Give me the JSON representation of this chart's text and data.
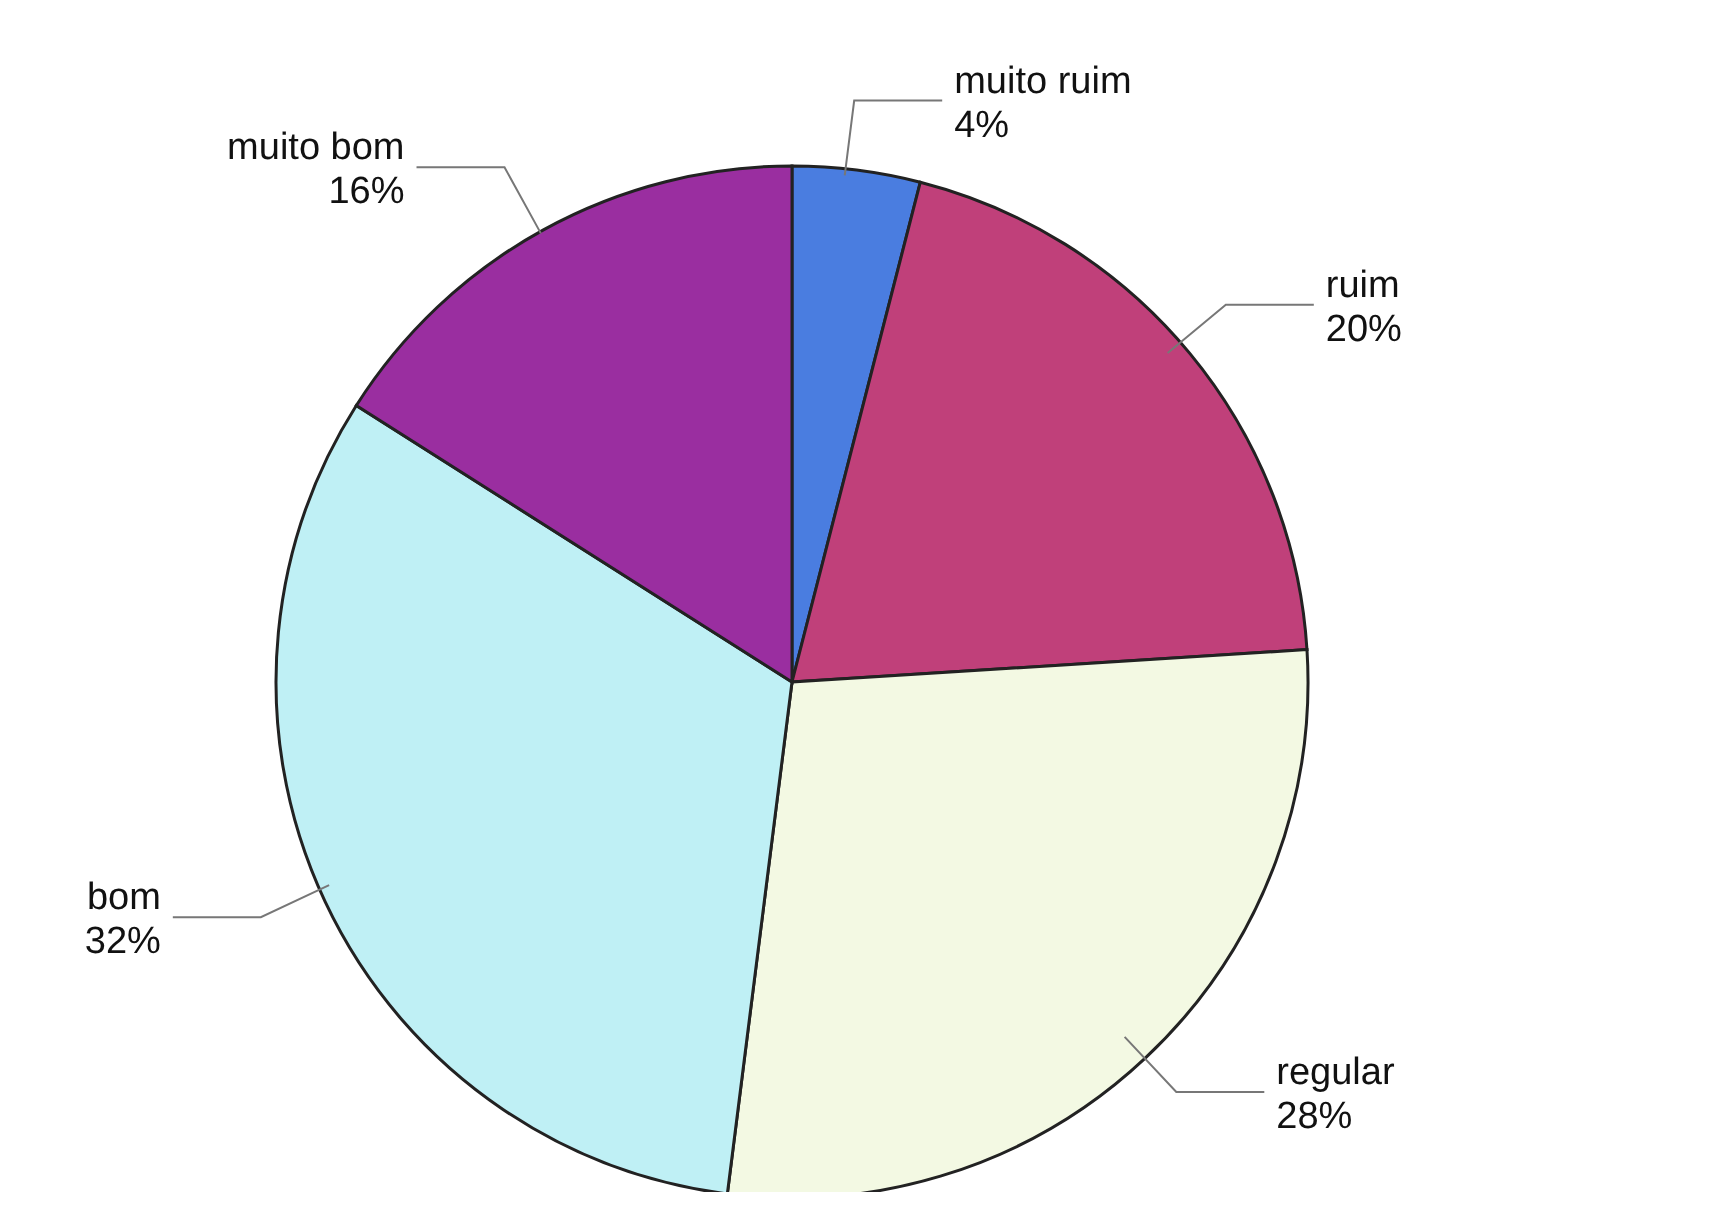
{
  "chart_data": {
    "type": "pie",
    "categories": [
      "muito ruim",
      "ruim",
      "regular",
      "bom",
      "muito bom"
    ],
    "values": [
      4,
      20,
      28,
      32,
      16
    ],
    "value_labels": [
      "4%",
      "20%",
      "28%",
      "32%",
      "16%"
    ],
    "colors": [
      "#4a7de0",
      "#c0407a",
      "#f3f9e3",
      "#bff0f5",
      "#9a2ea0"
    ],
    "legend": false
  }
}
